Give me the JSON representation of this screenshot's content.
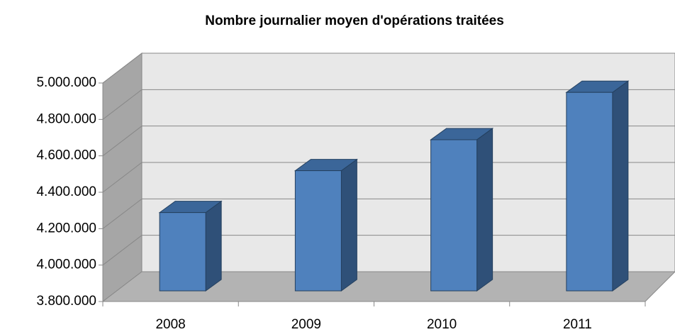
{
  "chart_data": {
    "type": "bar3d",
    "title": "Nombre journalier moyen d'opérations traitées",
    "categories": [
      "2008",
      "2009",
      "2010",
      "2011"
    ],
    "values": [
      4230000,
      4460000,
      4630000,
      4890000
    ],
    "color": "#4f81bd",
    "ylim": [
      3800000,
      5000000
    ],
    "yticks": [
      {
        "value": 3800000,
        "label": "3.800.000"
      },
      {
        "value": 4000000,
        "label": "4.000.000"
      },
      {
        "value": 4200000,
        "label": "4.200.000"
      },
      {
        "value": 4400000,
        "label": "4.400.000"
      },
      {
        "value": 4600000,
        "label": "4.600.000"
      },
      {
        "value": 4800000,
        "label": "4.800.000"
      },
      {
        "value": 5000000,
        "label": "5.000.000"
      }
    ],
    "grid": true
  }
}
